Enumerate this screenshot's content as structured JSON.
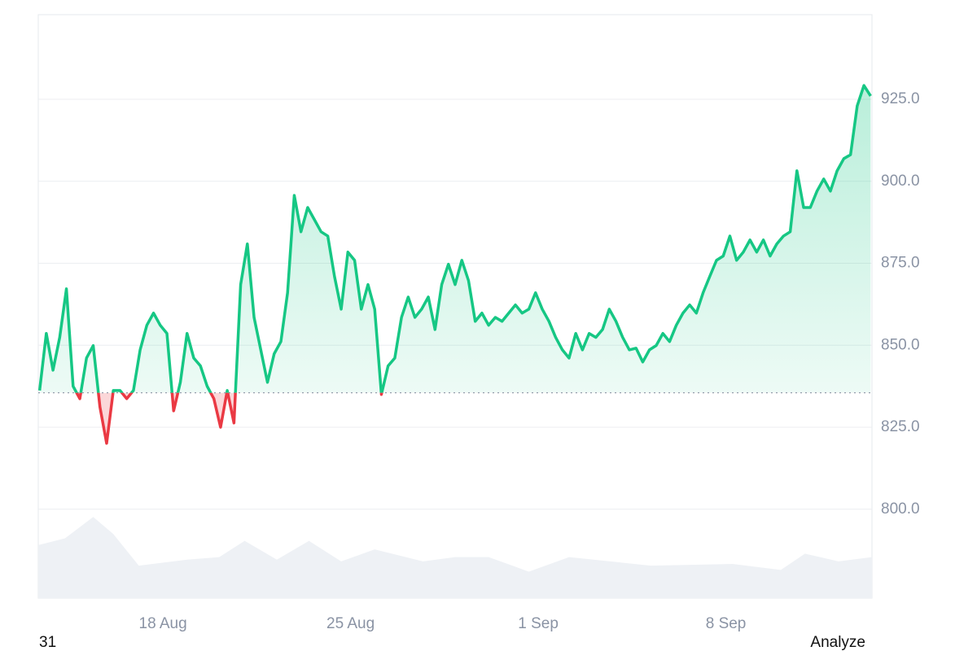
{
  "chart_data": {
    "type": "line",
    "xlim": [
      13.35,
      44.45
    ],
    "xticks": [
      {
        "value": 18,
        "label": "18 Aug"
      },
      {
        "value": 25,
        "label": "25 Aug"
      },
      {
        "value": 32,
        "label": "1 Sep"
      },
      {
        "value": 39,
        "label": "8 Sep"
      }
    ],
    "ylim": [
      772.9,
      950.8
    ],
    "yticks": [
      {
        "value": 800,
        "label": "800.0"
      },
      {
        "value": 825,
        "label": "825.0"
      },
      {
        "value": 850,
        "label": "850.0"
      },
      {
        "value": 875,
        "label": "875.0"
      },
      {
        "value": 900,
        "label": "900.0"
      },
      {
        "value": 925,
        "label": "925.0"
      }
    ],
    "y2lim": [
      0,
      100
    ],
    "grid": true,
    "baseline": 835.5,
    "up_color": "#16c784",
    "down_color": "#ea3943",
    "x": [
      13.4,
      13.65,
      13.9,
      14.15,
      14.4,
      14.65,
      14.9,
      15.15,
      15.4,
      15.65,
      15.9,
      16.15,
      16.4,
      16.65,
      16.9,
      17.15,
      17.4,
      17.65,
      17.9,
      18.15,
      18.4,
      18.65,
      18.9,
      19.15,
      19.4,
      19.65,
      19.9,
      20.15,
      20.4,
      20.65,
      20.9,
      21.15,
      21.4,
      21.65,
      21.9,
      22.15,
      22.4,
      22.65,
      22.9,
      23.15,
      23.4,
      23.65,
      23.9,
      24.15,
      24.4,
      24.65,
      24.9,
      25.15,
      25.4,
      25.65,
      25.9,
      26.15,
      26.4,
      26.65,
      26.9,
      27.15,
      27.4,
      27.65,
      27.9,
      28.15,
      28.4,
      28.65,
      28.9,
      29.15,
      29.4,
      29.65,
      29.9,
      30.15,
      30.4,
      30.65,
      30.9,
      31.15,
      31.4,
      31.65,
      31.9,
      32.15,
      32.4,
      32.65,
      32.9,
      33.15,
      33.4,
      33.65,
      33.9,
      34.15,
      34.4,
      34.65,
      34.9,
      35.15,
      35.4,
      35.65,
      35.9,
      36.15,
      36.4,
      36.65,
      36.9,
      37.15,
      37.4,
      37.65,
      37.9,
      38.15,
      38.4,
      38.65,
      38.9,
      39.15,
      39.4,
      39.65,
      39.9,
      40.15,
      40.4,
      40.65,
      40.9,
      41.15,
      41.4,
      41.65,
      41.9,
      42.15,
      42.4,
      42.65,
      42.9,
      43.15,
      43.4,
      43.65,
      43.9,
      44.15,
      44.4
    ],
    "series": [
      {
        "values": [
          836.2,
          853.6,
          842.4,
          852.4,
          867.2,
          837.5,
          833.7,
          846.1,
          849.9,
          831.2,
          820.1,
          836.2,
          836.2,
          833.7,
          836.2,
          848.6,
          856.1,
          859.8,
          856.1,
          853.6,
          830,
          838.7,
          853.6,
          846.1,
          843.7,
          837.5,
          833.7,
          825,
          836.2,
          826.3,
          868.5,
          880.9,
          858.5,
          848.6,
          838.7,
          847.4,
          851.1,
          866,
          895.7,
          884.6,
          892,
          888.3,
          884.6,
          883.3,
          871,
          861,
          878.4,
          875.9,
          861,
          868.5,
          861,
          835,
          843.7,
          846.1,
          858.5,
          864.7,
          858.5,
          861,
          864.7,
          854.8,
          868.5,
          874.7,
          868.5,
          875.9,
          869.7,
          857.3,
          859.8,
          856.1,
          858.5,
          857.3,
          859.8,
          862.3,
          859.8,
          861,
          866,
          861,
          857.3,
          852.4,
          848.6,
          846.1,
          853.6,
          848.6,
          853.6,
          852.4,
          854.8,
          861,
          857.3,
          852.4,
          848.6,
          849.1,
          844.9,
          848.6,
          849.9,
          853.6,
          851.1,
          856.1,
          859.8,
          862.3,
          859.8,
          866,
          871,
          875.9,
          877.2,
          883.3,
          875.9,
          878.4,
          882.1,
          878.4,
          882.1,
          877.2,
          880.9,
          883.3,
          884.6,
          903.2,
          892,
          892,
          897,
          900.7,
          897,
          903.2,
          906.9,
          908.1,
          923,
          929.2,
          926
        ]
      },
      {
        "axis": "y2",
        "color": "#eef1f5",
        "x": [
          13.35,
          14.35,
          15.4,
          16.15,
          17.1,
          18.9,
          20.1,
          21.05,
          22.25,
          23.45,
          24.65,
          25.9,
          27.7,
          28.9,
          30.15,
          31.65,
          33.15,
          36.2,
          39.25,
          41.05,
          41.95,
          43.2,
          44.45
        ],
        "values": [
          62,
          70,
          95,
          75,
          38,
          45,
          48,
          67,
          45,
          67,
          43,
          57,
          43,
          48,
          48,
          31,
          48,
          38,
          40,
          33,
          52,
          43,
          48
        ]
      }
    ]
  },
  "footer": {
    "left": "31",
    "right": "Analyze"
  }
}
